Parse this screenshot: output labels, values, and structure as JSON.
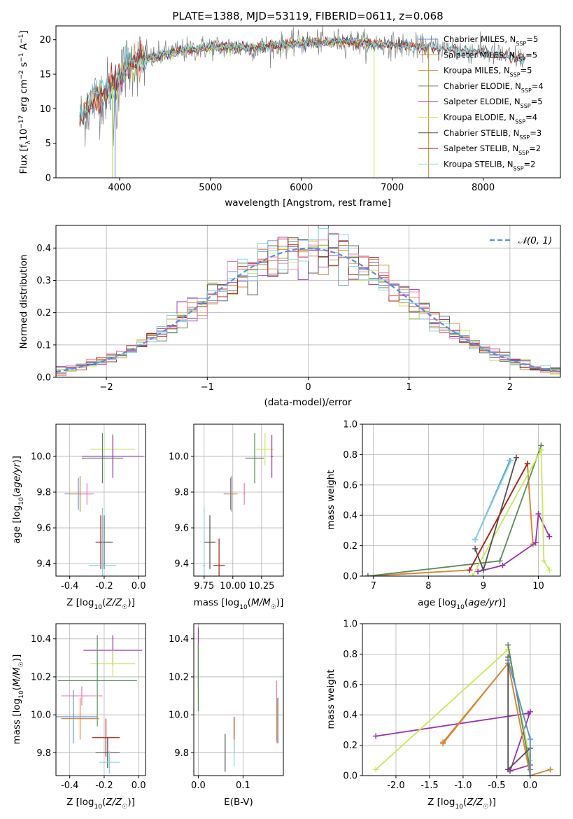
{
  "title": "PLATE=1388, MJD=53119, FIBERID=0611, z=0.068",
  "colors": {
    "Chabrier MILES": "#5b8fd6",
    "Salpeter MILES": "#d0892f",
    "Kroupa MILES": "#d9873a",
    "Chabrier ELODIE": "#5a8a5a",
    "Salpeter ELODIE": "#9b30b0",
    "Kroupa ELODIE": "#c8e85a",
    "Chabrier STELIB": "#505050",
    "Salpeter STELIB": "#b02020",
    "Kroupa STELIB": "#7dd4e0",
    "pink": "#e87fb0"
  },
  "chart_data": [
    {
      "id": "spectrum",
      "type": "line",
      "xlabel": "wavelength [Angstrom, rest frame]",
      "ylabel": "Flux [f_λ10^-17 erg cm^-2 s^-1 A^-1]",
      "xlim": [
        3300,
        8850
      ],
      "ylim": [
        0,
        22
      ],
      "xticks": [
        4000,
        5000,
        6000,
        7000,
        8000
      ],
      "yticks": [
        0,
        5,
        10,
        15,
        20
      ],
      "legend_position": "top-right",
      "legend": [
        {
          "name": "Chabrier MILES",
          "sub": "5"
        },
        {
          "name": "Salpeter MILES",
          "sub": "5"
        },
        {
          "name": "Kroupa MILES",
          "sub": "5"
        },
        {
          "name": "Chabrier ELODIE",
          "sub": "4"
        },
        {
          "name": "Salpeter ELODIE",
          "sub": "5"
        },
        {
          "name": "Kroupa ELODIE",
          "sub": "4"
        },
        {
          "name": "Chabrier STELIB",
          "sub": "3"
        },
        {
          "name": "Salpeter STELIB",
          "sub": "2"
        },
        {
          "name": "Kroupa STELIB",
          "sub": "2"
        }
      ],
      "continuum": {
        "x": [
          3550,
          3700,
          3900,
          4000,
          4100,
          4300,
          4500,
          5000,
          5500,
          6000,
          6500,
          7000,
          7500,
          8000,
          8300,
          8500
        ],
        "y": [
          8,
          11,
          13,
          14.5,
          16.5,
          17,
          18,
          19,
          18.8,
          19.5,
          19.8,
          19.2,
          18.8,
          18.2,
          17.5,
          17.2
        ]
      }
    },
    {
      "id": "residual-histogram",
      "type": "line",
      "xlabel": "(data-model)/error",
      "ylabel": "Normed distribution",
      "xlim": [
        -2.5,
        2.5
      ],
      "ylim": [
        0,
        0.47
      ],
      "xticks": [
        -2,
        -1,
        0,
        1,
        2
      ],
      "yticks": [
        0.0,
        0.1,
        0.2,
        0.3,
        0.4
      ],
      "legend_position": "top-right",
      "legend": [
        {
          "name": "N(0,1)"
        }
      ],
      "bins": [
        -2.5,
        2.5,
        50
      ]
    },
    {
      "id": "age-vs-Z",
      "type": "scatter",
      "xlabel": "Z [log10(Z/Z☉)]",
      "ylabel": "age  [log10(age/yr)]",
      "xlim": [
        -0.48,
        0.04
      ],
      "ylim": [
        9.33,
        10.18
      ],
      "xticks": [
        -0.4,
        -0.2,
        0.0
      ],
      "yticks": [
        9.4,
        9.6,
        9.8,
        10.0
      ],
      "points": [
        {
          "series": "Kroupa ELODIE",
          "x": -0.15,
          "y": 10.04,
          "ex": 0.13,
          "ey": 0.09
        },
        {
          "series": "Salpeter ELODIE",
          "x": -0.15,
          "y": 10.0,
          "ex": 0.18,
          "ey": 0.12
        },
        {
          "series": "Chabrier ELODIE",
          "x": -0.21,
          "y": 9.99,
          "ex": 0.12,
          "ey": 0.14
        },
        {
          "series": "Chabrier MILES",
          "x": -0.35,
          "y": 9.79,
          "ex": 0.08,
          "ey": 0.09
        },
        {
          "series": "Kroupa MILES",
          "x": -0.34,
          "y": 9.79,
          "ex": 0.06,
          "ey": 0.1
        },
        {
          "series": "pink",
          "x": -0.3,
          "y": 9.79,
          "ex": 0.04,
          "ey": 0.06
        },
        {
          "series": "Chabrier STELIB",
          "x": -0.2,
          "y": 9.52,
          "ex": 0.05,
          "ey": 0.15
        },
        {
          "series": "Salpeter STELIB",
          "x": -0.22,
          "y": 9.52,
          "ex": 0.01,
          "ey": 0.15
        },
        {
          "series": "Kroupa STELIB",
          "x": -0.21,
          "y": 9.39,
          "ex": 0.08,
          "ey": 0.32
        }
      ]
    },
    {
      "id": "age-vs-mass",
      "type": "scatter",
      "xlabel": "mass [log10(M/M☉)]",
      "ylabel": "",
      "xlim": [
        9.66,
        10.44
      ],
      "ylim": [
        9.33,
        10.18
      ],
      "xticks": [
        9.75,
        10.0,
        10.25
      ],
      "yticks": [
        9.4,
        9.6,
        9.8,
        10.0
      ],
      "points": [
        {
          "series": "Kroupa ELODIE",
          "x": 10.28,
          "y": 10.04,
          "ex": 0.08,
          "ey": 0.09
        },
        {
          "series": "Salpeter ELODIE",
          "x": 10.34,
          "y": 10.0,
          "ex": 0.01,
          "ey": 0.12
        },
        {
          "series": "Chabrier ELODIE",
          "x": 10.19,
          "y": 9.99,
          "ex": 0.08,
          "ey": 0.14
        },
        {
          "series": "Chabrier MILES",
          "x": 9.98,
          "y": 9.79,
          "ex": 0.06,
          "ey": 0.09
        },
        {
          "series": "Kroupa MILES",
          "x": 9.99,
          "y": 9.79,
          "ex": 0.05,
          "ey": 0.1
        },
        {
          "series": "pink",
          "x": 10.1,
          "y": 9.79,
          "ex": 0.01,
          "ey": 0.06
        },
        {
          "series": "Chabrier STELIB",
          "x": 9.8,
          "y": 9.52,
          "ex": 0.05,
          "ey": 0.15
        },
        {
          "series": "Salpeter STELIB",
          "x": 9.88,
          "y": 9.39,
          "ex": 0.05,
          "ey": 0.15
        },
        {
          "series": "Kroupa STELIB",
          "x": 9.75,
          "y": 9.39,
          "ex": 0.01,
          "ey": 0.32
        }
      ]
    },
    {
      "id": "weight-vs-age",
      "type": "line",
      "xlabel": "age  [log10(age/yr)]",
      "ylabel": "mass weight",
      "xlim": [
        6.8,
        10.4
      ],
      "ylim": [
        0,
        1
      ],
      "xticks": [
        7,
        8,
        9,
        10
      ],
      "yticks": [
        0.0,
        0.2,
        0.4,
        0.6,
        0.8,
        1.0
      ],
      "series": [
        {
          "name": "Chabrier MILES",
          "x": [
            8.85,
            9.48
          ],
          "y": [
            0.24,
            0.76
          ]
        },
        {
          "name": "Kroupa STELIB",
          "x": [
            8.85,
            9.5
          ],
          "y": [
            0.24,
            0.76
          ]
        },
        {
          "name": "Salpeter MILES",
          "x": [
            6.9,
            8.75,
            9.8,
            9.9
          ],
          "y": [
            0.0,
            0.04,
            0.74,
            0.21
          ]
        },
        {
          "name": "Kroupa MILES",
          "x": [
            6.9,
            8.75,
            9.8,
            9.9
          ],
          "y": [
            0.0,
            0.04,
            0.74,
            0.21
          ]
        },
        {
          "name": "Chabrier ELODIE",
          "x": [
            6.9,
            9.3,
            10.05
          ],
          "y": [
            0.0,
            0.1,
            0.86
          ]
        },
        {
          "name": "Salpeter ELODIE",
          "x": [
            8.9,
            9.35,
            9.95,
            10.0,
            10.2
          ],
          "y": [
            0.03,
            0.07,
            0.22,
            0.41,
            0.26
          ]
        },
        {
          "name": "Kroupa ELODIE",
          "x": [
            8.8,
            10.05,
            10.1,
            10.2
          ],
          "y": [
            0.0,
            0.83,
            0.1,
            0.04
          ]
        },
        {
          "name": "Chabrier STELIB",
          "x": [
            8.85,
            9.0,
            9.6
          ],
          "y": [
            0.18,
            0.04,
            0.78
          ]
        },
        {
          "name": "Salpeter STELIB",
          "x": [
            8.75,
            9.8
          ],
          "y": [
            0.04,
            0.74
          ]
        }
      ]
    },
    {
      "id": "mass-vs-Z",
      "type": "scatter",
      "xlabel": "Z [log10(Z/Z☉)]",
      "ylabel": "mass [log10(M/M☉)]",
      "xlim": [
        -0.48,
        0.04
      ],
      "ylim": [
        9.68,
        10.48
      ],
      "xticks": [
        -0.4,
        -0.2,
        0.0
      ],
      "yticks": [
        9.8,
        10.0,
        10.2,
        10.4
      ],
      "points": [
        {
          "series": "Salpeter ELODIE",
          "x": -0.15,
          "y": 10.34,
          "ex": 0.17,
          "ey": 0.08
        },
        {
          "series": "Kroupa ELODIE",
          "x": -0.15,
          "y": 10.27,
          "ex": 0.13,
          "ey": 0.07
        },
        {
          "series": "Chabrier ELODIE",
          "x": -0.24,
          "y": 10.18,
          "ex": 0.23,
          "ey": 0.24
        },
        {
          "series": "pink",
          "x": -0.33,
          "y": 10.1,
          "ex": 0.12,
          "ey": 0.05
        },
        {
          "series": "Chabrier MILES",
          "x": -0.38,
          "y": 9.99,
          "ex": 0.14,
          "ey": 0.14
        },
        {
          "series": "Kroupa MILES",
          "x": -0.34,
          "y": 9.98,
          "ex": 0.11,
          "ey": 0.11
        },
        {
          "series": "Salpeter STELIB",
          "x": -0.19,
          "y": 9.88,
          "ex": 0.08,
          "ey": 0.1
        },
        {
          "series": "Chabrier STELIB",
          "x": -0.18,
          "y": 9.8,
          "ex": 0.07,
          "ey": 0.08
        },
        {
          "series": "Kroupa STELIB",
          "x": -0.17,
          "y": 9.75,
          "ex": 0.06,
          "ey": 0.06
        }
      ]
    },
    {
      "id": "mass-vs-EBV",
      "type": "scatter",
      "xlabel": "E(B-V)",
      "ylabel": "",
      "xlim": [
        -0.01,
        0.19
      ],
      "ylim": [
        9.68,
        10.48
      ],
      "xticks": [
        0.0,
        0.1
      ],
      "yticks": [
        9.8,
        10.0,
        10.2,
        10.4
      ],
      "points": [
        {
          "series": "Salpeter ELODIE",
          "x": 0.0,
          "y": 10.3,
          "ex": 0.0,
          "ey": 0.16
        },
        {
          "series": "Kroupa ELODIE",
          "x": 0.0,
          "y": 10.22,
          "ex": 0.0,
          "ey": 0.16
        },
        {
          "series": "Chabrier ELODIE",
          "x": 0.0,
          "y": 10.2,
          "ex": 0.0,
          "ey": 0.18
        },
        {
          "series": "Chabrier STELIB",
          "x": 0.06,
          "y": 9.8,
          "ex": 0.0,
          "ey": 0.1
        },
        {
          "series": "Salpeter STELIB",
          "x": 0.08,
          "y": 9.9,
          "ex": 0.0,
          "ey": 0.09
        },
        {
          "series": "Kroupa STELIB",
          "x": 0.08,
          "y": 9.8,
          "ex": 0.0,
          "ey": 0.07
        },
        {
          "series": "pink",
          "x": 0.175,
          "y": 10.02,
          "ex": 0.0,
          "ey": 0.16
        },
        {
          "series": "Kroupa MILES",
          "x": 0.176,
          "y": 9.97,
          "ex": 0.0,
          "ey": 0.12
        },
        {
          "series": "Chabrier MILES",
          "x": 0.178,
          "y": 9.97,
          "ex": 0.0,
          "ey": 0.12
        }
      ]
    },
    {
      "id": "weight-vs-Z",
      "type": "line",
      "xlabel": "Z [log10(Z/Z☉)]",
      "ylabel": "mass weight",
      "xlim": [
        -2.5,
        0.45
      ],
      "ylim": [
        0,
        1
      ],
      "xticks": [
        -2.0,
        -1.5,
        -1.0,
        -0.5,
        0.0
      ],
      "yticks": [
        0.0,
        0.2,
        0.4,
        0.6,
        0.8,
        1.0
      ],
      "series": [
        {
          "name": "Salpeter ELODIE",
          "x": [
            -2.3,
            -0.03,
            0.0,
            -0.3,
            0.0
          ],
          "y": [
            0.26,
            0.41,
            0.42,
            0.03,
            0.07
          ]
        },
        {
          "name": "Kroupa ELODIE",
          "x": [
            -2.3,
            -0.33,
            0.0
          ],
          "y": [
            0.04,
            0.83,
            0.1
          ]
        },
        {
          "name": "Salpeter MILES",
          "x": [
            -1.3,
            -0.33,
            0.0,
            0.3
          ],
          "y": [
            0.21,
            0.74,
            0.0,
            0.04
          ]
        },
        {
          "name": "Kroupa MILES",
          "x": [
            -1.3,
            -0.33,
            0.0,
            0.3
          ],
          "y": [
            0.22,
            0.74,
            0.0,
            0.04
          ]
        },
        {
          "name": "Chabrier ELODIE",
          "x": [
            -0.33,
            0.0
          ],
          "y": [
            0.86,
            0.04
          ]
        },
        {
          "name": "Chabrier STELIB",
          "x": [
            -0.33,
            -0.33,
            0.0,
            0.0
          ],
          "y": [
            0.78,
            0.04,
            0.18,
            0.0
          ]
        },
        {
          "name": "Kroupa STELIB",
          "x": [
            -0.33,
            0.0,
            0.0
          ],
          "y": [
            0.76,
            0.24,
            0.0
          ]
        },
        {
          "name": "Chabrier MILES",
          "x": [
            -0.33,
            0.0,
            0.0
          ],
          "y": [
            0.76,
            0.24,
            0.0
          ]
        }
      ]
    }
  ]
}
